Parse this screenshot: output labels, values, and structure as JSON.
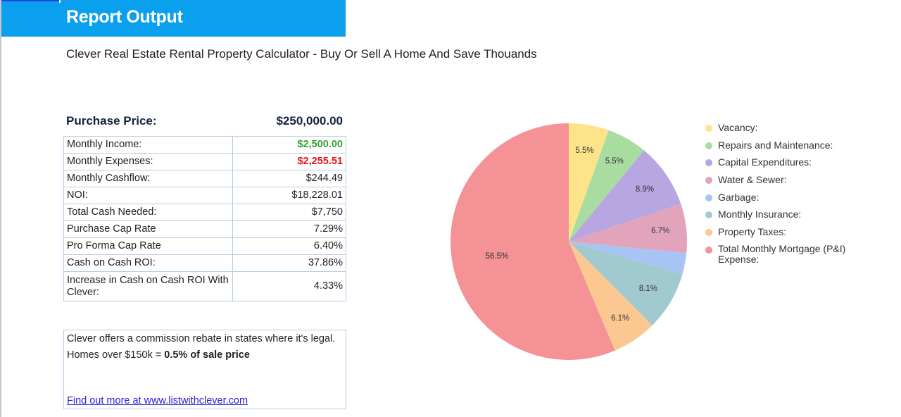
{
  "header": {
    "title": "Report Output",
    "subtitle": "Clever Real Estate Rental Property Calculator - Buy Or Sell A Home And Save Thouands",
    "bar_color": "#0aa0ee"
  },
  "purchase_price": {
    "label": "Purchase Price:",
    "value": "$250,000.00"
  },
  "metrics": [
    {
      "label": "Monthly Income:",
      "value": "$2,500.00",
      "color": "#36a335"
    },
    {
      "label": "Monthly Expenses:",
      "value": "$2,255.51",
      "color": "#e8131b"
    },
    {
      "label": "Monthly Cashflow:",
      "value": "$244.49"
    },
    {
      "label": "NOI:",
      "value": "$18,228.01"
    },
    {
      "label": "Total Cash Needed:",
      "value": "$7,750"
    },
    {
      "label": "Purchase Cap Rate",
      "value": "7.29%"
    },
    {
      "label": "Pro Forma Cap Rate",
      "value": "6.40%"
    },
    {
      "label": "Cash on Cash ROI:",
      "value": "37.86%"
    },
    {
      "label": "Increase in Cash on Cash ROI With Clever:",
      "value": "4.33%"
    }
  ],
  "promo": {
    "line1": "Clever offers a commission rebate in states where it's legal.",
    "line2_prefix": "Homes over $150k = ",
    "line2_bold": "0.5% of sale price",
    "link_text": "Find out more at www.listwithclever.com"
  },
  "chart_data": {
    "type": "pie",
    "title": "",
    "legend_position": "right",
    "categories": [
      "Vacancy:",
      "Repairs and Maintenance:",
      "Capital Expenditures:",
      "Water & Sewer:",
      "Garbage:",
      "Monthly Insurance:",
      "Property Taxes:",
      "Total Monthly Mortgage (P&I) Expense:"
    ],
    "values": [
      5.5,
      5.5,
      8.9,
      6.7,
      2.9,
      8.1,
      6.1,
      56.5
    ],
    "labels": [
      "5.5%",
      "5.5%",
      "8.9%",
      "6.7%",
      "",
      "8.1%",
      "6.1%",
      "56.5%"
    ],
    "colors": [
      "#fde38a",
      "#a8dca0",
      "#b8a6e2",
      "#e2a4bb",
      "#a8c4f4",
      "#a0cace",
      "#fcc892",
      "#f59296"
    ],
    "unit": "%"
  }
}
